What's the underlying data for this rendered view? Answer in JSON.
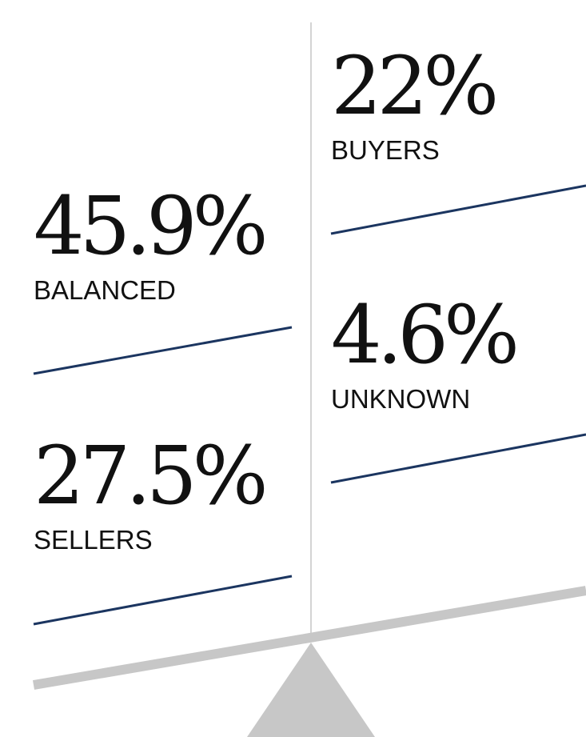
{
  "colors": {
    "accent_line": "#1b3560",
    "scale_gray": "#c7c7c7",
    "divider_gray": "#d4d4d4",
    "text": "#111111"
  },
  "stats": {
    "buyers": {
      "value": "22%",
      "label": "BUYERS"
    },
    "balanced": {
      "value": "45.9%",
      "label": "BALANCED"
    },
    "unknown": {
      "value": "4.6%",
      "label": "UNKNOWN"
    },
    "sellers": {
      "value": "27.5%",
      "label": "SELLERS"
    }
  }
}
